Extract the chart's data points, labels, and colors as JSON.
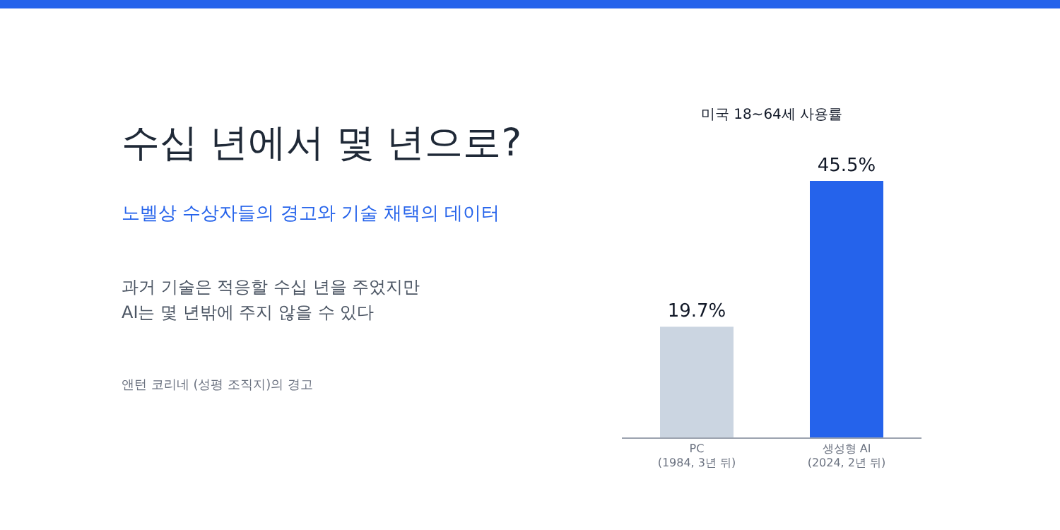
{
  "chart_data": {
    "type": "bar",
    "title": "수십 년에서 몇 년으로?",
    "subtitle": "노벨상 수상자들의 경고와 기술 채택의 데이터",
    "ylabel": "미국 18~64세 사용률",
    "annotations": [
      "과거 기술은 적응할 수십 년을 주었지만\nAI는 몇 년밖에 주지 않을 수 있다",
      "앤턴 코리네 (성평 조직지)의 경고"
    ],
    "categories": [
      "PC\n(1984, 3년 뒤)",
      "생성형 AI\n(2024, 2년 뒤)"
    ],
    "values": [
      19.7,
      45.5
    ],
    "colors": [
      "#cbd5e1",
      "#2563eb"
    ],
    "value_labels": [
      "19.7%",
      "45.5%"
    ]
  }
}
